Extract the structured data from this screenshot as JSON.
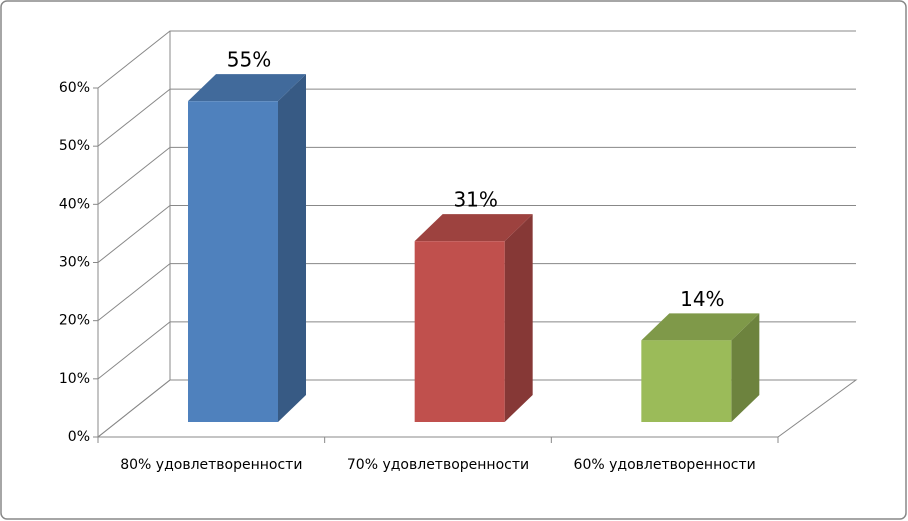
{
  "chart_data": {
    "type": "bar3d",
    "categories": [
      "80% удовлетворенности",
      "70% удовлетворенности",
      "60% удовлетворенности"
    ],
    "values": [
      55,
      31,
      14
    ],
    "value_labels": [
      "55%",
      "31%",
      "14%"
    ],
    "colors": [
      "#4f81bd",
      "#c0504d",
      "#9bbb59"
    ],
    "ylim": [
      0,
      60
    ],
    "yticks": [
      {
        "value": 0,
        "label": "0%"
      },
      {
        "value": 10,
        "label": "10%"
      },
      {
        "value": 20,
        "label": "20%"
      },
      {
        "value": 30,
        "label": "30%"
      },
      {
        "value": 40,
        "label": "40%"
      },
      {
        "value": 50,
        "label": "50%"
      },
      {
        "value": 60,
        "label": "60%"
      }
    ],
    "grid": true
  }
}
